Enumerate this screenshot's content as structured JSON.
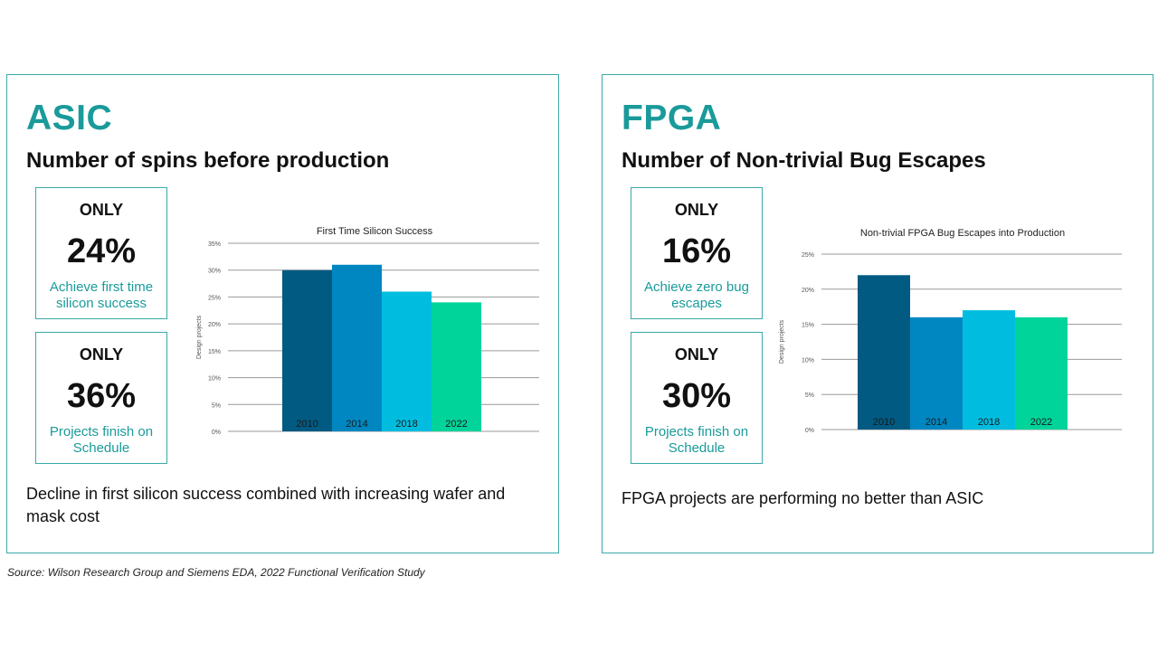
{
  "colors": {
    "accent": "#1a9a9a",
    "border": "#3ba9a9",
    "bars": [
      "#005a82",
      "#0087c1",
      "#00bde0",
      "#00d49a"
    ]
  },
  "asic": {
    "title": "ASIC",
    "subtitle": "Number of spins before production",
    "stats": [
      {
        "only": "ONLY",
        "value": "24%",
        "caption": "Achieve first time silicon success"
      },
      {
        "only": "ONLY",
        "value": "36%",
        "caption": "Projects finish on Schedule"
      }
    ],
    "note": "Decline in first silicon success combined with increasing wafer and mask cost"
  },
  "fpga": {
    "title": "FPGA",
    "subtitle": "Number of Non-trivial Bug Escapes",
    "stats": [
      {
        "only": "ONLY",
        "value": "16%",
        "caption": "Achieve zero bug escapes"
      },
      {
        "only": "ONLY",
        "value": "30%",
        "caption": "Projects finish on Schedule"
      }
    ],
    "note": "FPGA projects are performing no better than ASIC"
  },
  "source": "Source:  Wilson Research Group and Siemens EDA, 2022 Functional Verification Study",
  "chart_data": [
    {
      "type": "bar",
      "title": "First Time Silicon Success",
      "categories": [
        "2010",
        "2014",
        "2018",
        "2022"
      ],
      "values": [
        30,
        31,
        26,
        24
      ],
      "ylabel": "Design projects",
      "xlabel": "",
      "ylim": [
        0,
        35
      ],
      "yticks": [
        0,
        5,
        10,
        15,
        20,
        25,
        30,
        35
      ],
      "yticklabels": [
        "0%",
        "5%",
        "10%",
        "15%",
        "20%",
        "25%",
        "30%",
        "35%"
      ],
      "grid": true
    },
    {
      "type": "bar",
      "title": "Non-trivial FPGA Bug Escapes into Production",
      "categories": [
        "2010",
        "2014",
        "2018",
        "2022"
      ],
      "values": [
        22,
        16,
        17,
        16
      ],
      "ylabel": "Design projects",
      "xlabel": "",
      "ylim": [
        0,
        25
      ],
      "yticks": [
        0,
        5,
        10,
        15,
        20,
        25
      ],
      "yticklabels": [
        "0%",
        "5%",
        "10%",
        "15%",
        "20%",
        "25%"
      ],
      "grid": true
    }
  ]
}
